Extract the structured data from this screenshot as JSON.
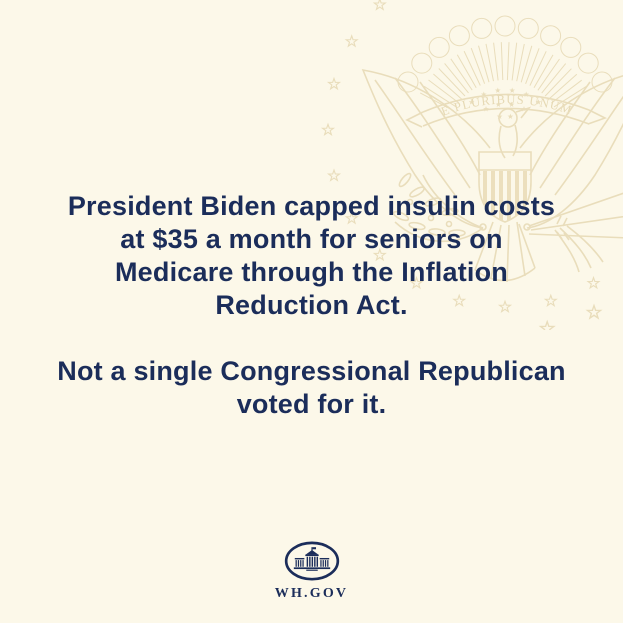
{
  "colors": {
    "background": "#fcf8e9",
    "text": "#1b2d5a",
    "watermark": "#e9ddbb",
    "logo": "#1b2d5a"
  },
  "message": {
    "paragraph1": "President Biden capped insulin costs\nat $35 a month for seniors on\nMedicare through the Inflation\nReduction Act.",
    "paragraph2": "Not a single Congressional Republican\nvoted for it."
  },
  "watermark": {
    "motto": "E PLURIBUS UNUM"
  },
  "footer": {
    "wordmark": "WH.GOV"
  }
}
